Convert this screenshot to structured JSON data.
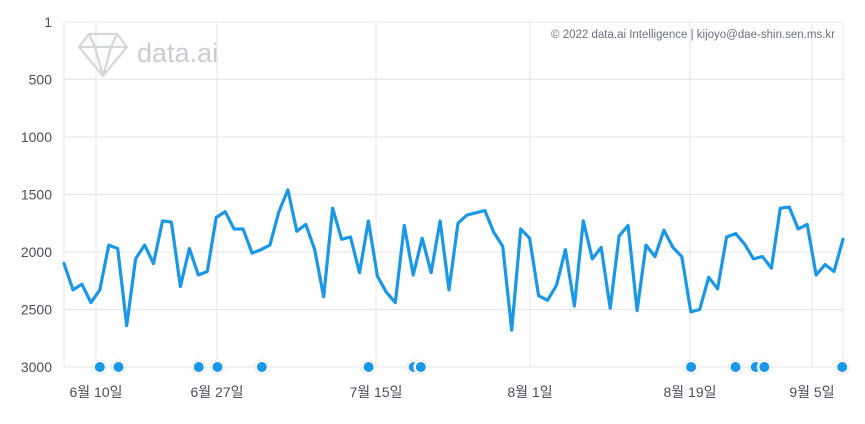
{
  "copyright": "© 2022 data.ai Intelligence | kijoyo@dae-shin.sen.ms.kr",
  "watermark": {
    "text": "data.ai",
    "icon": "diamond-logo-icon"
  },
  "colors": {
    "line": "#1a97e6",
    "marker": "#1a97e6",
    "grid": "#e3e5ea",
    "text": "#4a4f5c"
  },
  "chart_data": {
    "type": "line",
    "y_inverted": true,
    "ylim": [
      1,
      3000
    ],
    "y_ticks": [
      1,
      500,
      1000,
      1500,
      2000,
      2500,
      3000
    ],
    "y_tick_labels": [
      "1",
      "500",
      "1000",
      "1500",
      "2000",
      "2500",
      "3000"
    ],
    "x_ticks": [
      "6월 10일",
      "6월 27일",
      "7월 15일",
      "8월 1일",
      "8월 19일",
      "9월 5일"
    ],
    "grid": true,
    "series": [
      {
        "values": [
          2100,
          2330,
          2280,
          2440,
          2330,
          1940,
          1970,
          2640,
          2060,
          1940,
          2100,
          1730,
          1740,
          2300,
          1970,
          2200,
          2170,
          1700,
          1650,
          1800,
          1800,
          2010,
          1980,
          1940,
          1650,
          1460,
          1820,
          1760,
          1980,
          2390,
          1620,
          1890,
          1870,
          2180,
          1730,
          2210,
          2350,
          2440,
          1770,
          2200,
          1880,
          2180,
          1730,
          2330,
          1750,
          1680,
          1660,
          1640,
          1830,
          1950,
          2680,
          1800,
          1880,
          2380,
          2420,
          2290,
          1980,
          2470,
          1730,
          2060,
          1960,
          2490,
          1860,
          1770,
          2510,
          1940,
          2040,
          1810,
          1960,
          2040,
          2520,
          2500,
          2220,
          2320,
          1870,
          1840,
          1930,
          2060,
          2040,
          2140,
          1620,
          1610,
          1800,
          1760,
          2200,
          2110,
          2170,
          1890
        ]
      }
    ],
    "event_marker_positions": [
      0.046,
      0.07,
      0.173,
      0.197,
      0.254,
      0.391,
      0.449,
      0.458,
      0.805,
      0.862,
      0.888,
      0.899,
      0.999
    ]
  }
}
